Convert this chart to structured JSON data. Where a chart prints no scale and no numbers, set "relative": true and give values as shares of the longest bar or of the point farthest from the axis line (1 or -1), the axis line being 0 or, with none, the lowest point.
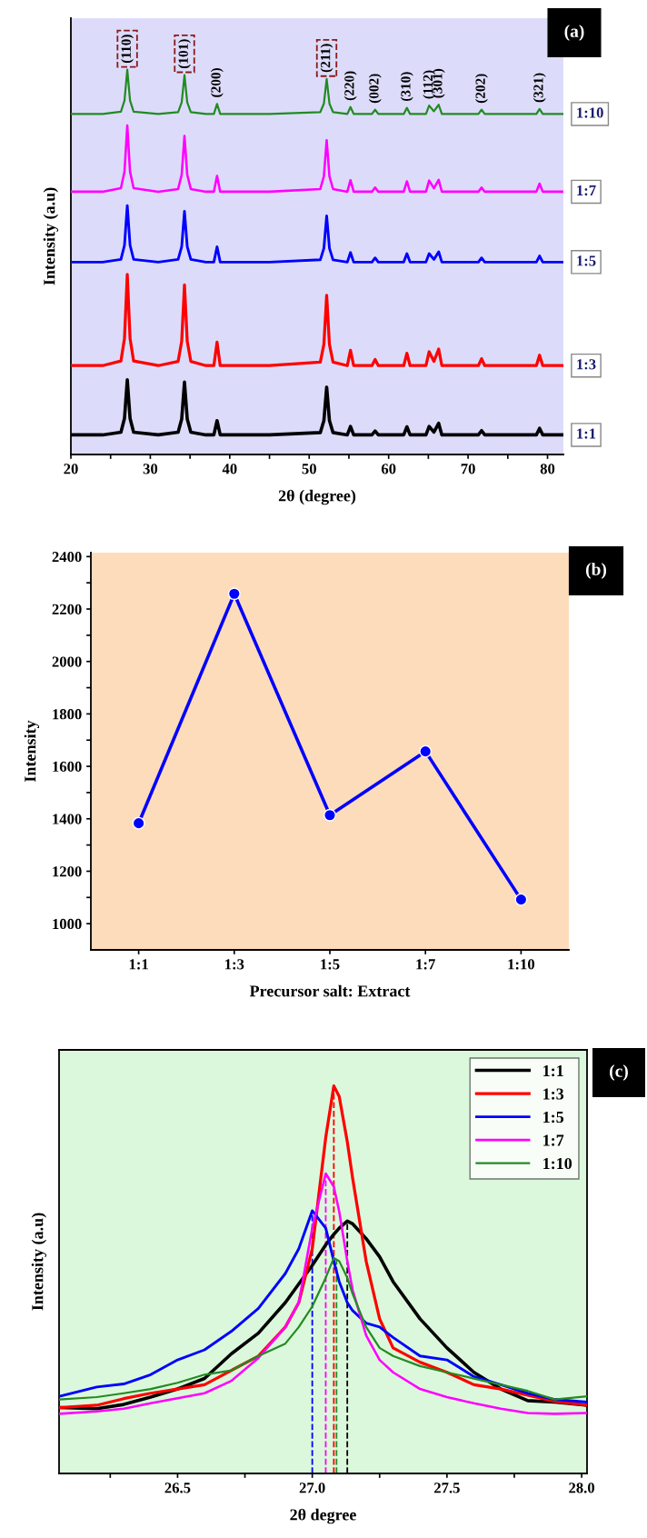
{
  "chart_data": [
    {
      "type": "line",
      "relative": true,
      "xlabel": "2θ (degree)",
      "ylabel": "Intensity (a.u)",
      "legend": false,
      "tick_labels": "x",
      "line_style": "solid",
      "marker": "none",
      "xlim": [
        20,
        82
      ],
      "xticks": [
        20,
        {
          "value": 25,
          "label": null
        },
        30,
        {
          "value": 35,
          "label": null
        },
        40,
        {
          "value": 45,
          "label": null
        },
        50,
        {
          "value": 55,
          "label": null
        },
        60,
        {
          "value": 65,
          "label": null
        },
        70,
        {
          "value": 75,
          "label": null
        },
        80
      ],
      "x": [
        20,
        24,
        26.3,
        26.75,
        27.1,
        27.45,
        27.9,
        31,
        33.5,
        33.95,
        34.3,
        34.65,
        35.1,
        37,
        38.0,
        38.4,
        38.8,
        45,
        51.4,
        51.85,
        52.2,
        52.55,
        53.0,
        54.8,
        55.2,
        55.6,
        57.9,
        58.3,
        58.7,
        61.9,
        62.3,
        62.7,
        64.7,
        65.1,
        65.7,
        66.3,
        66.7,
        71.3,
        71.7,
        72.1,
        78.6,
        79.0,
        79.4,
        82
      ],
      "series": [
        {
          "name": "1:1",
          "color": "#000000",
          "values": [
            0.051,
            0.051,
            0.058,
            0.094,
            0.194,
            0.094,
            0.058,
            0.051,
            0.058,
            0.092,
            0.188,
            0.092,
            0.058,
            0.051,
            0.051,
            0.088,
            0.051,
            0.051,
            0.057,
            0.088,
            0.175,
            0.088,
            0.057,
            0.051,
            0.073,
            0.051,
            0.051,
            0.061,
            0.051,
            0.051,
            0.072,
            0.051,
            0.051,
            0.073,
            0.058,
            0.081,
            0.051,
            0.051,
            0.062,
            0.051,
            0.051,
            0.068,
            0.051,
            0.051
          ]
        },
        {
          "name": "1:3",
          "color": "#ff0000",
          "values": [
            0.231,
            0.231,
            0.243,
            0.302,
            0.468,
            0.302,
            0.243,
            0.231,
            0.242,
            0.294,
            0.441,
            0.294,
            0.242,
            0.231,
            0.231,
            0.292,
            0.231,
            0.231,
            0.24,
            0.286,
            0.414,
            0.286,
            0.24,
            0.231,
            0.271,
            0.231,
            0.231,
            0.247,
            0.231,
            0.231,
            0.263,
            0.231,
            0.231,
            0.267,
            0.242,
            0.274,
            0.231,
            0.231,
            0.249,
            0.231,
            0.231,
            0.258,
            0.231,
            0.231
          ]
        },
        {
          "name": "1:5",
          "color": "#0000ff",
          "values": [
            0.5,
            0.5,
            0.507,
            0.544,
            0.647,
            0.544,
            0.507,
            0.5,
            0.507,
            0.54,
            0.632,
            0.54,
            0.507,
            0.5,
            0.5,
            0.54,
            0.5,
            0.5,
            0.506,
            0.536,
            0.62,
            0.536,
            0.506,
            0.5,
            0.525,
            0.5,
            0.5,
            0.511,
            0.5,
            0.5,
            0.522,
            0.5,
            0.5,
            0.522,
            0.507,
            0.527,
            0.5,
            0.5,
            0.511,
            0.5,
            0.5,
            0.516,
            0.5,
            0.5
          ]
        },
        {
          "name": "1:7",
          "color": "#ff00ff",
          "values": [
            0.683,
            0.683,
            0.692,
            0.735,
            0.855,
            0.735,
            0.692,
            0.683,
            0.69,
            0.727,
            0.828,
            0.727,
            0.69,
            0.683,
            0.683,
            0.724,
            0.683,
            0.683,
            0.69,
            0.723,
            0.817,
            0.723,
            0.69,
            0.683,
            0.713,
            0.683,
            0.683,
            0.694,
            0.683,
            0.683,
            0.71,
            0.683,
            0.683,
            0.712,
            0.692,
            0.714,
            0.683,
            0.683,
            0.694,
            0.683,
            0.683,
            0.704,
            0.683,
            0.683
          ]
        },
        {
          "name": "1:10",
          "color": "#228b22",
          "values": [
            0.885,
            0.885,
            0.891,
            0.92,
            1.0,
            0.92,
            0.891,
            0.885,
            0.89,
            0.915,
            0.986,
            0.915,
            0.89,
            0.885,
            0.885,
            0.911,
            0.885,
            0.885,
            0.89,
            0.912,
            0.976,
            0.912,
            0.89,
            0.885,
            0.903,
            0.885,
            0.885,
            0.896,
            0.885,
            0.885,
            0.901,
            0.885,
            0.885,
            0.907,
            0.892,
            0.909,
            0.885,
            0.885,
            0.896,
            0.885,
            0.885,
            0.898,
            0.885,
            0.885
          ]
        }
      ],
      "annotations": [
        "(a)",
        {
          "text": "(110)",
          "x": 27.1,
          "y": 1.0
        },
        {
          "text": "(101)",
          "x": 34.3,
          "y": 0.986
        },
        {
          "text": "(200)",
          "x": 38.4,
          "y": 0.911
        },
        {
          "text": "(211)",
          "x": 52.2,
          "y": 0.976
        },
        {
          "text": "(220)",
          "x": 55.2,
          "y": 0.903
        },
        {
          "text": "(002)",
          "x": 58.3,
          "y": 0.896
        },
        {
          "text": "(310)",
          "x": 62.3,
          "y": 0.901
        },
        {
          "text": "(112)",
          "x": 65.1,
          "y": 0.907
        },
        {
          "text": "(301)",
          "x": 66.3,
          "y": 0.909
        },
        {
          "text": "(202)",
          "x": 71.7,
          "y": 0.896
        },
        {
          "text": "(321)",
          "x": 79.0,
          "y": 0.898
        }
      ]
    },
    {
      "type": "line",
      "xlabel": "Precursor salt: Extract",
      "ylabel": "Intensity",
      "marker": "circle",
      "line_style": "solid",
      "categories": [
        "1:1",
        "1:3",
        "1:5",
        "1:7",
        "1:10"
      ],
      "series": [
        {
          "color": "#0000ff",
          "values": [
            1383,
            2258,
            1414,
            1657,
            1092
          ]
        }
      ],
      "ylim": [
        900,
        2415
      ],
      "yticks": [
        1000,
        {
          "value": 1100,
          "label": null
        },
        1200,
        {
          "value": 1300,
          "label": null
        },
        1400,
        {
          "value": 1500,
          "label": null
        },
        1600,
        {
          "value": 1700,
          "label": null
        },
        1800,
        {
          "value": 1900,
          "label": null
        },
        2000,
        {
          "value": 2100,
          "label": null
        },
        2200,
        {
          "value": 2300,
          "label": null
        },
        2400
      ],
      "annotations": [
        "(b)"
      ]
    },
    {
      "type": "line",
      "relative": true,
      "xlabel": "2θ degree",
      "ylabel": "Intensity (a.u)",
      "legend": "top right",
      "tick_labels": "x",
      "line_style": "solid",
      "marker": "none",
      "xlim": [
        26.06,
        28.02
      ],
      "xticks": [
        {
          "value": 26.25,
          "label": null
        },
        {
          "value": 26.5,
          "label": "26.5"
        },
        {
          "value": 26.75,
          "label": null
        },
        {
          "value": 27.0,
          "label": "27.0"
        },
        {
          "value": 27.25,
          "label": null
        },
        {
          "value": 27.5,
          "label": "27.5"
        },
        {
          "value": 27.75,
          "label": null
        },
        {
          "value": 28.0,
          "label": "28.0"
        }
      ],
      "x": [
        26.06,
        26.2,
        26.3,
        26.4,
        26.5,
        26.6,
        26.7,
        26.8,
        26.9,
        26.95,
        27.0,
        27.05,
        27.08,
        27.1,
        27.13,
        27.15,
        27.2,
        27.25,
        27.3,
        27.4,
        27.5,
        27.6,
        27.7,
        27.8,
        27.9,
        28.02
      ],
      "series": [
        {
          "name": "1:1",
          "color": "#000000",
          "values": [
            0.17,
            0.167,
            0.178,
            0.197,
            0.218,
            0.245,
            0.309,
            0.362,
            0.441,
            0.489,
            0.537,
            0.59,
            0.617,
            0.633,
            0.651,
            0.644,
            0.606,
            0.559,
            0.495,
            0.399,
            0.324,
            0.261,
            0.218,
            0.188,
            0.184,
            0.176
          ]
        },
        {
          "name": "1:3",
          "color": "#ff0000",
          "values": [
            0.17,
            0.176,
            0.193,
            0.207,
            0.218,
            0.229,
            0.266,
            0.303,
            0.378,
            0.441,
            0.58,
            0.867,
            1.0,
            0.973,
            0.856,
            0.761,
            0.548,
            0.399,
            0.324,
            0.287,
            0.261,
            0.229,
            0.218,
            0.202,
            0.186,
            0.176
          ]
        },
        {
          "name": "1:5",
          "color": "#0000ff",
          "values": [
            0.199,
            0.223,
            0.231,
            0.255,
            0.293,
            0.319,
            0.367,
            0.426,
            0.516,
            0.58,
            0.678,
            0.633,
            0.548,
            0.495,
            0.441,
            0.42,
            0.388,
            0.378,
            0.351,
            0.303,
            0.293,
            0.25,
            0.229,
            0.207,
            0.191,
            0.184
          ]
        },
        {
          "name": "1:7",
          "color": "#ff00ff",
          "values": [
            0.154,
            0.16,
            0.167,
            0.181,
            0.194,
            0.207,
            0.239,
            0.298,
            0.378,
            0.441,
            0.633,
            0.774,
            0.74,
            0.676,
            0.548,
            0.473,
            0.356,
            0.293,
            0.261,
            0.218,
            0.197,
            0.181,
            0.167,
            0.156,
            0.154,
            0.156
          ]
        },
        {
          "name": "1:10",
          "color": "#228b22",
          "values": [
            0.191,
            0.197,
            0.207,
            0.218,
            0.234,
            0.255,
            0.266,
            0.303,
            0.335,
            0.378,
            0.431,
            0.505,
            0.556,
            0.548,
            0.505,
            0.463,
            0.378,
            0.324,
            0.303,
            0.277,
            0.261,
            0.245,
            0.229,
            0.213,
            0.191,
            0.199
          ]
        }
      ],
      "ref_lines": [
        {
          "axis": "x",
          "value": 27.0,
          "color": "#0000ff",
          "line_style": "dashed"
        },
        {
          "axis": "x",
          "value": 27.05,
          "color": "#ff00ff",
          "line_style": "dashed"
        },
        {
          "axis": "x",
          "value": 27.08,
          "color": "#ff0000",
          "line_style": "dashed"
        },
        {
          "axis": "x",
          "value": 27.09,
          "color": "#228b22",
          "line_style": "dashed"
        },
        {
          "axis": "x",
          "value": 27.13,
          "color": "#000000",
          "line_style": "dashed"
        }
      ],
      "annotations": [
        "(c)"
      ]
    }
  ]
}
